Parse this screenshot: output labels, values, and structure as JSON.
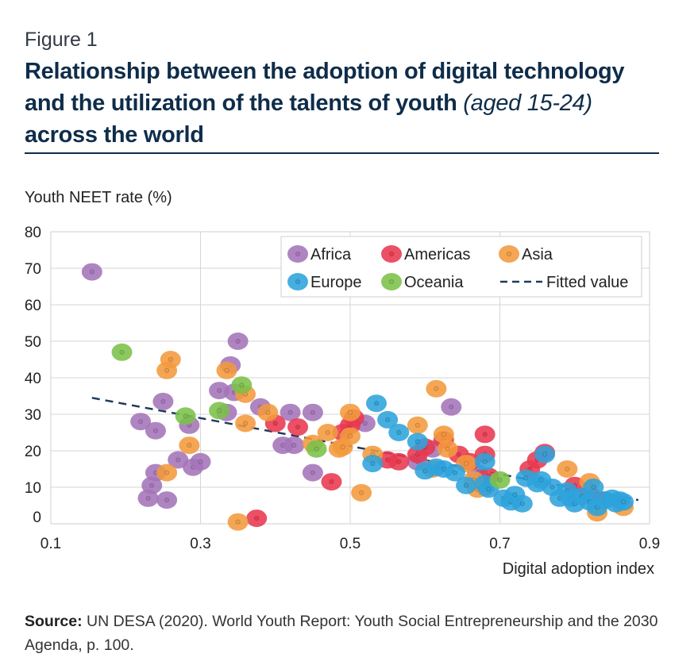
{
  "figure_label": "Figure 1",
  "title": {
    "part1": "Relationship between the adoption of digital technology and the utilization of the talents of youth ",
    "italic": "(aged 15-24)",
    "part2": " across the world"
  },
  "source": {
    "label": "Source:",
    "text": " UN DESA (2020). World Youth Report: Youth Social Entrepreneurship and the 2030 Agenda, p. 100."
  },
  "chart_data": {
    "type": "scatter",
    "ylabel": "Youth NEET rate (%)",
    "xlabel": "Digital adoption index",
    "xlim": [
      0.1,
      0.9
    ],
    "ylim": [
      0,
      80
    ],
    "x_ticks": [
      "0.1",
      "0.3",
      "0.5",
      "0.7",
      "0.9"
    ],
    "y_ticks": [
      "0",
      "10",
      "20",
      "30",
      "40",
      "50",
      "60",
      "70",
      "80"
    ],
    "grid": true,
    "legend_position": "top-right",
    "fitted_line": {
      "name": "Fitted value",
      "color": "#1f3a5f",
      "x": [
        0.155,
        0.885
      ],
      "y": [
        34.5,
        6.5
      ]
    },
    "series": [
      {
        "name": "Africa",
        "color": "#a474b8",
        "points": [
          [
            0.155,
            69
          ],
          [
            0.22,
            28
          ],
          [
            0.24,
            25.5
          ],
          [
            0.25,
            33.5
          ],
          [
            0.23,
            7
          ],
          [
            0.235,
            10.5
          ],
          [
            0.24,
            14
          ],
          [
            0.255,
            6.5
          ],
          [
            0.27,
            17.5
          ],
          [
            0.285,
            27
          ],
          [
            0.29,
            15.5
          ],
          [
            0.3,
            17
          ],
          [
            0.325,
            36.5
          ],
          [
            0.335,
            30.5
          ],
          [
            0.34,
            43.5
          ],
          [
            0.345,
            36
          ],
          [
            0.35,
            50
          ],
          [
            0.38,
            32
          ],
          [
            0.41,
            21.5
          ],
          [
            0.42,
            30.5
          ],
          [
            0.425,
            21.5
          ],
          [
            0.45,
            30.5
          ],
          [
            0.45,
            14
          ],
          [
            0.52,
            27.5
          ],
          [
            0.61,
            20.5
          ],
          [
            0.635,
            32
          ],
          [
            0.67,
            14
          ],
          [
            0.68,
            10
          ],
          [
            0.59,
            17
          ]
        ]
      },
      {
        "name": "Americas",
        "color": "#e8384f",
        "points": [
          [
            0.375,
            1.5
          ],
          [
            0.4,
            27.5
          ],
          [
            0.43,
            26.5
          ],
          [
            0.475,
            11.5
          ],
          [
            0.49,
            25
          ],
          [
            0.5,
            27
          ],
          [
            0.505,
            29
          ],
          [
            0.55,
            17.5
          ],
          [
            0.565,
            17
          ],
          [
            0.59,
            19
          ],
          [
            0.6,
            21
          ],
          [
            0.625,
            23
          ],
          [
            0.645,
            19
          ],
          [
            0.66,
            17
          ],
          [
            0.68,
            24.5
          ],
          [
            0.68,
            19
          ],
          [
            0.685,
            13
          ],
          [
            0.74,
            15
          ],
          [
            0.75,
            17.5
          ],
          [
            0.76,
            19.5
          ],
          [
            0.8,
            10.5
          ],
          [
            0.82,
            8
          ],
          [
            0.84,
            6.5
          ]
        ]
      },
      {
        "name": "Asia",
        "color": "#f39a3e",
        "points": [
          [
            0.255,
            42
          ],
          [
            0.26,
            45
          ],
          [
            0.255,
            14
          ],
          [
            0.285,
            21.5
          ],
          [
            0.335,
            42
          ],
          [
            0.36,
            35.5
          ],
          [
            0.36,
            27.5
          ],
          [
            0.35,
            0.5
          ],
          [
            0.39,
            30.5
          ],
          [
            0.45,
            22
          ],
          [
            0.47,
            25
          ],
          [
            0.485,
            20.5
          ],
          [
            0.49,
            21
          ],
          [
            0.5,
            24
          ],
          [
            0.5,
            30.5
          ],
          [
            0.515,
            8.5
          ],
          [
            0.53,
            19
          ],
          [
            0.59,
            27
          ],
          [
            0.615,
            37
          ],
          [
            0.625,
            24.5
          ],
          [
            0.63,
            20.5
          ],
          [
            0.655,
            16.5
          ],
          [
            0.665,
            12
          ],
          [
            0.67,
            9.5
          ],
          [
            0.79,
            15
          ],
          [
            0.82,
            11.5
          ],
          [
            0.83,
            3
          ],
          [
            0.865,
            4.5
          ],
          [
            0.61,
            15
          ]
        ]
      },
      {
        "name": "Europe",
        "color": "#2ea3dc",
        "points": [
          [
            0.53,
            16.5
          ],
          [
            0.535,
            33
          ],
          [
            0.55,
            28.5
          ],
          [
            0.565,
            25
          ],
          [
            0.59,
            22.5
          ],
          [
            0.6,
            14.5
          ],
          [
            0.615,
            15.5
          ],
          [
            0.625,
            15
          ],
          [
            0.64,
            14
          ],
          [
            0.655,
            10.5
          ],
          [
            0.68,
            17
          ],
          [
            0.68,
            11
          ],
          [
            0.685,
            9.5
          ],
          [
            0.705,
            7
          ],
          [
            0.715,
            6
          ],
          [
            0.72,
            8
          ],
          [
            0.73,
            5.5
          ],
          [
            0.735,
            12.5
          ],
          [
            0.75,
            11
          ],
          [
            0.755,
            12
          ],
          [
            0.76,
            19
          ],
          [
            0.77,
            10
          ],
          [
            0.78,
            7
          ],
          [
            0.79,
            9
          ],
          [
            0.795,
            7
          ],
          [
            0.8,
            5.5
          ],
          [
            0.81,
            7.5
          ],
          [
            0.82,
            6
          ],
          [
            0.825,
            10
          ],
          [
            0.83,
            4.5
          ],
          [
            0.84,
            6.5
          ],
          [
            0.85,
            7
          ],
          [
            0.855,
            5.5
          ],
          [
            0.86,
            6.5
          ],
          [
            0.865,
            6
          ]
        ]
      },
      {
        "name": "Oceania",
        "color": "#7bc24a",
        "points": [
          [
            0.195,
            47
          ],
          [
            0.28,
            29.5
          ],
          [
            0.325,
            31
          ],
          [
            0.355,
            38
          ],
          [
            0.455,
            20.5
          ],
          [
            0.7,
            12
          ]
        ]
      }
    ]
  }
}
